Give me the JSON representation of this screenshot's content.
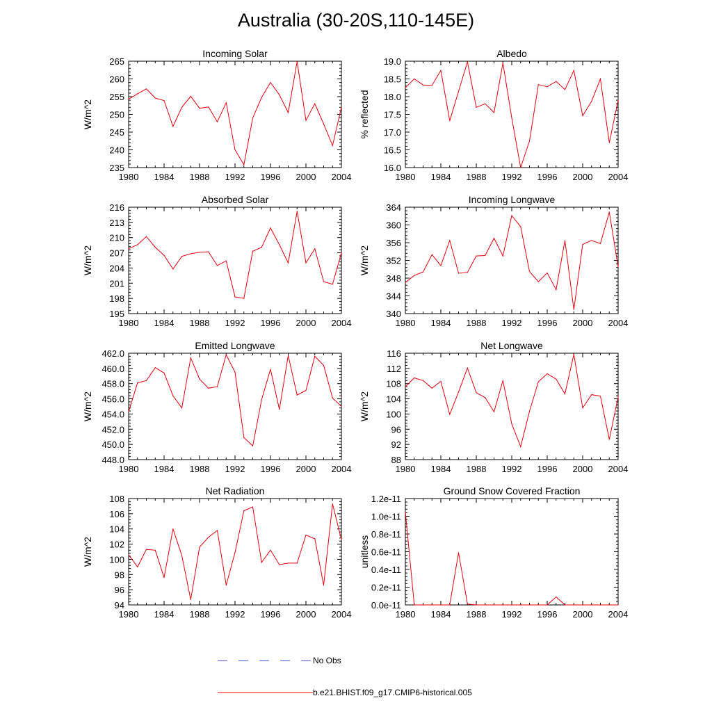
{
  "title": "Australia (30-20S,110-145E)",
  "legend": {
    "obs_label": "No Obs",
    "model_label": "b.e21.BHIST.f09_g17.CMIP6-historical.005",
    "obs_color": "#3b4fc4",
    "model_color": "#e8000b"
  },
  "chart_data": [
    {
      "type": "line",
      "title": "Incoming Solar",
      "ylabel": "W/m^2",
      "x": [
        1980,
        1981,
        1982,
        1983,
        1984,
        1985,
        1986,
        1987,
        1988,
        1989,
        1990,
        1991,
        1992,
        1993,
        1994,
        1995,
        1996,
        1997,
        1998,
        1999,
        2000,
        2001,
        2002,
        2003,
        2004
      ],
      "series": [
        {
          "values": [
            254.3,
            255.8,
            257.2,
            254.6,
            253.9,
            246.6,
            252.0,
            255.1,
            251.7,
            252.1,
            247.9,
            253.3,
            240.0,
            235.8,
            249.0,
            254.8,
            259.0,
            255.5,
            250.5,
            264.9,
            248.3,
            253.0,
            247.3,
            241.2,
            252.0
          ]
        }
      ],
      "xlim": [
        1980,
        2004
      ],
      "ylim": [
        235,
        265
      ],
      "xticks": [
        "1980",
        "1984",
        "1988",
        "1992",
        "1996",
        "2000",
        "2004"
      ],
      "yticks": [
        "235",
        "240",
        "245",
        "250",
        "255",
        "260",
        "265"
      ],
      "ytick_values": [
        235,
        240,
        245,
        250,
        255,
        260,
        265
      ]
    },
    {
      "type": "line",
      "title": "Albedo",
      "ylabel": "% reflected",
      "x": [
        1980,
        1981,
        1982,
        1983,
        1984,
        1985,
        1986,
        1987,
        1988,
        1989,
        1990,
        1991,
        1992,
        1993,
        1994,
        1995,
        1996,
        1997,
        1998,
        1999,
        2000,
        2001,
        2002,
        2003,
        2004
      ],
      "series": [
        {
          "values": [
            18.25,
            18.5,
            18.33,
            18.32,
            18.74,
            17.32,
            18.15,
            18.98,
            17.7,
            17.8,
            17.55,
            18.95,
            17.4,
            16.0,
            16.75,
            18.34,
            18.28,
            18.43,
            18.2,
            18.74,
            17.46,
            17.87,
            18.5,
            16.7,
            17.9
          ]
        }
      ],
      "xlim": [
        1980,
        2004
      ],
      "ylim": [
        16.0,
        19.0
      ],
      "xticks": [
        "1980",
        "1984",
        "1988",
        "1992",
        "1996",
        "2000",
        "2004"
      ],
      "yticks": [
        "16.0",
        "16.5",
        "17.0",
        "17.5",
        "18.0",
        "18.5",
        "19.0"
      ],
      "ytick_values": [
        16.0,
        16.5,
        17.0,
        17.5,
        18.0,
        18.5,
        19.0
      ]
    },
    {
      "type": "line",
      "title": "Absorbed Solar",
      "ylabel": "W/m^2",
      "x": [
        1980,
        1981,
        1982,
        1983,
        1984,
        1985,
        1986,
        1987,
        1988,
        1989,
        1990,
        1991,
        1992,
        1993,
        1994,
        1995,
        1996,
        1997,
        1998,
        1999,
        2000,
        2001,
        2002,
        2003,
        2004
      ],
      "series": [
        {
          "values": [
            207.8,
            208.6,
            210.2,
            208.1,
            206.5,
            203.8,
            206.3,
            206.8,
            207.1,
            207.2,
            204.5,
            205.4,
            198.3,
            198.0,
            207.3,
            208.1,
            211.9,
            208.6,
            205.0,
            215.2,
            205.0,
            207.8,
            201.3,
            200.8,
            207.0
          ]
        }
      ],
      "xlim": [
        1980,
        2004
      ],
      "ylim": [
        195,
        216
      ],
      "xticks": [
        "1980",
        "1984",
        "1988",
        "1992",
        "1996",
        "2000",
        "2004"
      ],
      "yticks": [
        "195",
        "198",
        "201",
        "204",
        "207",
        "210",
        "213",
        "216"
      ],
      "ytick_values": [
        195,
        198,
        201,
        204,
        207,
        210,
        213,
        216
      ]
    },
    {
      "type": "line",
      "title": "Incoming Longwave",
      "ylabel": "W/m^2",
      "x": [
        1980,
        1981,
        1982,
        1983,
        1984,
        1985,
        1986,
        1987,
        1988,
        1989,
        1990,
        1991,
        1992,
        1993,
        1994,
        1995,
        1996,
        1997,
        1998,
        1999,
        2000,
        2001,
        2002,
        2003,
        2004
      ],
      "series": [
        {
          "values": [
            347.0,
            348.6,
            349.4,
            353.3,
            350.8,
            356.5,
            349.1,
            349.3,
            353.0,
            353.1,
            357.0,
            353.0,
            362.1,
            359.6,
            349.5,
            347.2,
            349.2,
            345.4,
            356.5,
            340.9,
            355.6,
            356.5,
            355.8,
            362.9,
            350.5
          ]
        }
      ],
      "xlim": [
        1980,
        2004
      ],
      "ylim": [
        340,
        364
      ],
      "xticks": [
        "1980",
        "1984",
        "1988",
        "1992",
        "1996",
        "2000",
        "2004"
      ],
      "yticks": [
        "340",
        "344",
        "348",
        "352",
        "356",
        "360",
        "364"
      ],
      "ytick_values": [
        340,
        344,
        348,
        352,
        356,
        360,
        364
      ]
    },
    {
      "type": "line",
      "title": "Emitted Longwave",
      "ylabel": "W/m^2",
      "x": [
        1980,
        1981,
        1982,
        1983,
        1984,
        1985,
        1986,
        1987,
        1988,
        1989,
        1990,
        1991,
        1992,
        1993,
        1994,
        1995,
        1996,
        1997,
        1998,
        1999,
        2000,
        2001,
        2002,
        2003,
        2004
      ],
      "series": [
        {
          "values": [
            454.3,
            458.1,
            458.4,
            460.1,
            459.4,
            456.4,
            454.8,
            461.4,
            458.6,
            457.4,
            457.6,
            461.8,
            459.5,
            450.9,
            449.8,
            455.9,
            459.9,
            454.6,
            461.7,
            456.5,
            457.1,
            461.6,
            460.4,
            456.1,
            455.0
          ]
        }
      ],
      "xlim": [
        1980,
        2004
      ],
      "ylim": [
        448,
        462
      ],
      "xticks": [
        "1980",
        "1984",
        "1988",
        "1992",
        "1996",
        "2000",
        "2004"
      ],
      "yticks": [
        "448.0",
        "450.0",
        "452.0",
        "454.0",
        "456.0",
        "458.0",
        "460.0",
        "462.0"
      ],
      "ytick_values": [
        448,
        450,
        452,
        454,
        456,
        458,
        460,
        462
      ]
    },
    {
      "type": "line",
      "title": "Net Longwave",
      "ylabel": "W/m^2",
      "x": [
        1980,
        1981,
        1982,
        1983,
        1984,
        1985,
        1986,
        1987,
        1988,
        1989,
        1990,
        1991,
        1992,
        1993,
        1994,
        1995,
        1996,
        1997,
        1998,
        1999,
        2000,
        2001,
        2002,
        2003,
        2004
      ],
      "series": [
        {
          "values": [
            107.2,
            109.5,
            108.8,
            106.8,
            108.6,
            99.9,
            105.8,
            112.1,
            105.6,
            104.3,
            100.6,
            108.8,
            97.4,
            91.4,
            100.7,
            108.5,
            110.6,
            109.2,
            105.3,
            115.7,
            101.6,
            105.1,
            104.7,
            93.3,
            104.5
          ]
        }
      ],
      "xlim": [
        1980,
        2004
      ],
      "ylim": [
        88,
        116
      ],
      "xticks": [
        "1980",
        "1984",
        "1988",
        "1992",
        "1996",
        "2000",
        "2004"
      ],
      "yticks": [
        "88",
        "92",
        "96",
        "100",
        "104",
        "108",
        "112",
        "116"
      ],
      "ytick_values": [
        88,
        92,
        96,
        100,
        104,
        108,
        112,
        116
      ]
    },
    {
      "type": "line",
      "title": "Net Radiation",
      "ylabel": "W/m^2",
      "x": [
        1980,
        1981,
        1982,
        1983,
        1984,
        1985,
        1986,
        1987,
        1988,
        1989,
        1990,
        1991,
        1992,
        1993,
        1994,
        1995,
        1996,
        1997,
        1998,
        1999,
        2000,
        2001,
        2002,
        2003,
        2004
      ],
      "series": [
        {
          "values": [
            100.6,
            99.0,
            101.3,
            101.2,
            97.6,
            104.0,
            100.5,
            94.7,
            101.6,
            102.9,
            103.8,
            96.6,
            100.9,
            106.4,
            106.9,
            99.6,
            101.2,
            99.3,
            99.5,
            99.5,
            103.2,
            102.7,
            96.6,
            107.3,
            102.6
          ]
        }
      ],
      "xlim": [
        1980,
        2004
      ],
      "ylim": [
        94,
        108
      ],
      "xticks": [
        "1980",
        "1984",
        "1988",
        "1992",
        "1996",
        "2000",
        "2004"
      ],
      "yticks": [
        "94",
        "96",
        "98",
        "100",
        "102",
        "104",
        "106",
        "108"
      ],
      "ytick_values": [
        94,
        96,
        98,
        100,
        102,
        104,
        106,
        108
      ]
    },
    {
      "type": "line",
      "title": "Ground Snow Covered Fraction",
      "ylabel": "unitless",
      "x": [
        1980,
        1981,
        1982,
        1983,
        1984,
        1985,
        1986,
        1987,
        1988,
        1989,
        1990,
        1991,
        1992,
        1993,
        1994,
        1995,
        1996,
        1997,
        1998,
        1999,
        2000,
        2001,
        2002,
        2003,
        2004
      ],
      "series": [
        {
          "values": [
            1.05e-11,
            0,
            0,
            0,
            0,
            0,
            5.9e-12,
            1e-13,
            0,
            0,
            0,
            0,
            0,
            0,
            0,
            0,
            0,
            9e-13,
            0,
            0,
            0,
            0,
            0,
            0,
            0
          ]
        }
      ],
      "xlim": [
        1980,
        2004
      ],
      "ylim": [
        0,
        1.2e-11
      ],
      "xticks": [
        "1980",
        "1984",
        "1988",
        "1992",
        "1996",
        "2000",
        "2004"
      ],
      "yticks": [
        "0.0e-11",
        "0.2e-11",
        "0.4e-11",
        "0.6e-11",
        "0.8e-11",
        "1.0e-11",
        "1.2e-11"
      ],
      "ytick_values": [
        0,
        2e-12,
        4e-12,
        6e-12,
        8e-12,
        1e-11,
        1.2e-11
      ]
    }
  ]
}
